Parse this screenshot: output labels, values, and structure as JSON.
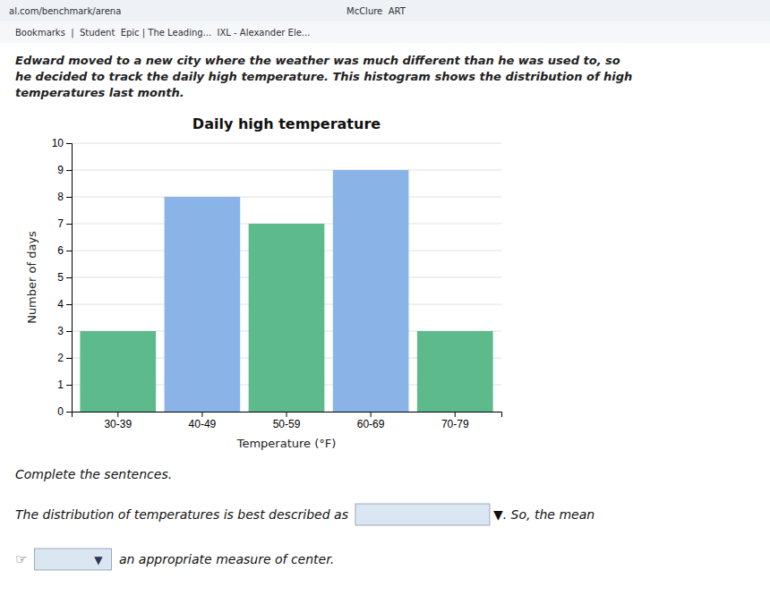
{
  "chart_data": {
    "type": "bar",
    "title": "Daily high temperature",
    "xlabel": "Temperature (°F)",
    "ylabel": "Number of days",
    "categories": [
      "30-39",
      "40-49",
      "50-59",
      "60-69",
      "70-79"
    ],
    "values": [
      3,
      8,
      7,
      9,
      3
    ],
    "colors": [
      "#5dba8c",
      "#8ab4e8",
      "#5dba8c",
      "#8ab4e8",
      "#5dba8c"
    ],
    "ylim": [
      0,
      10
    ],
    "yticks": [
      0,
      1,
      2,
      3,
      4,
      5,
      6,
      7,
      8,
      9,
      10
    ],
    "grid": true,
    "annotations": [
      "al.com/benchmark/arena",
      "McClure  ART",
      "Bookmarks  |  Student  Epic | The Leading...  IXL - Alexander Ele...",
      "Edward moved to a new city where the weather was much different than he was used to, so",
      "he decided to track the daily high temperature. This histogram shows the distribution of high",
      "temperatures last month.",
      "Complete the sentences.",
      "The distribution of temperatures is best described as",
      "▼. So, the mean",
      "☞",
      "▼",
      " an appropriate measure of center."
    ]
  }
}
